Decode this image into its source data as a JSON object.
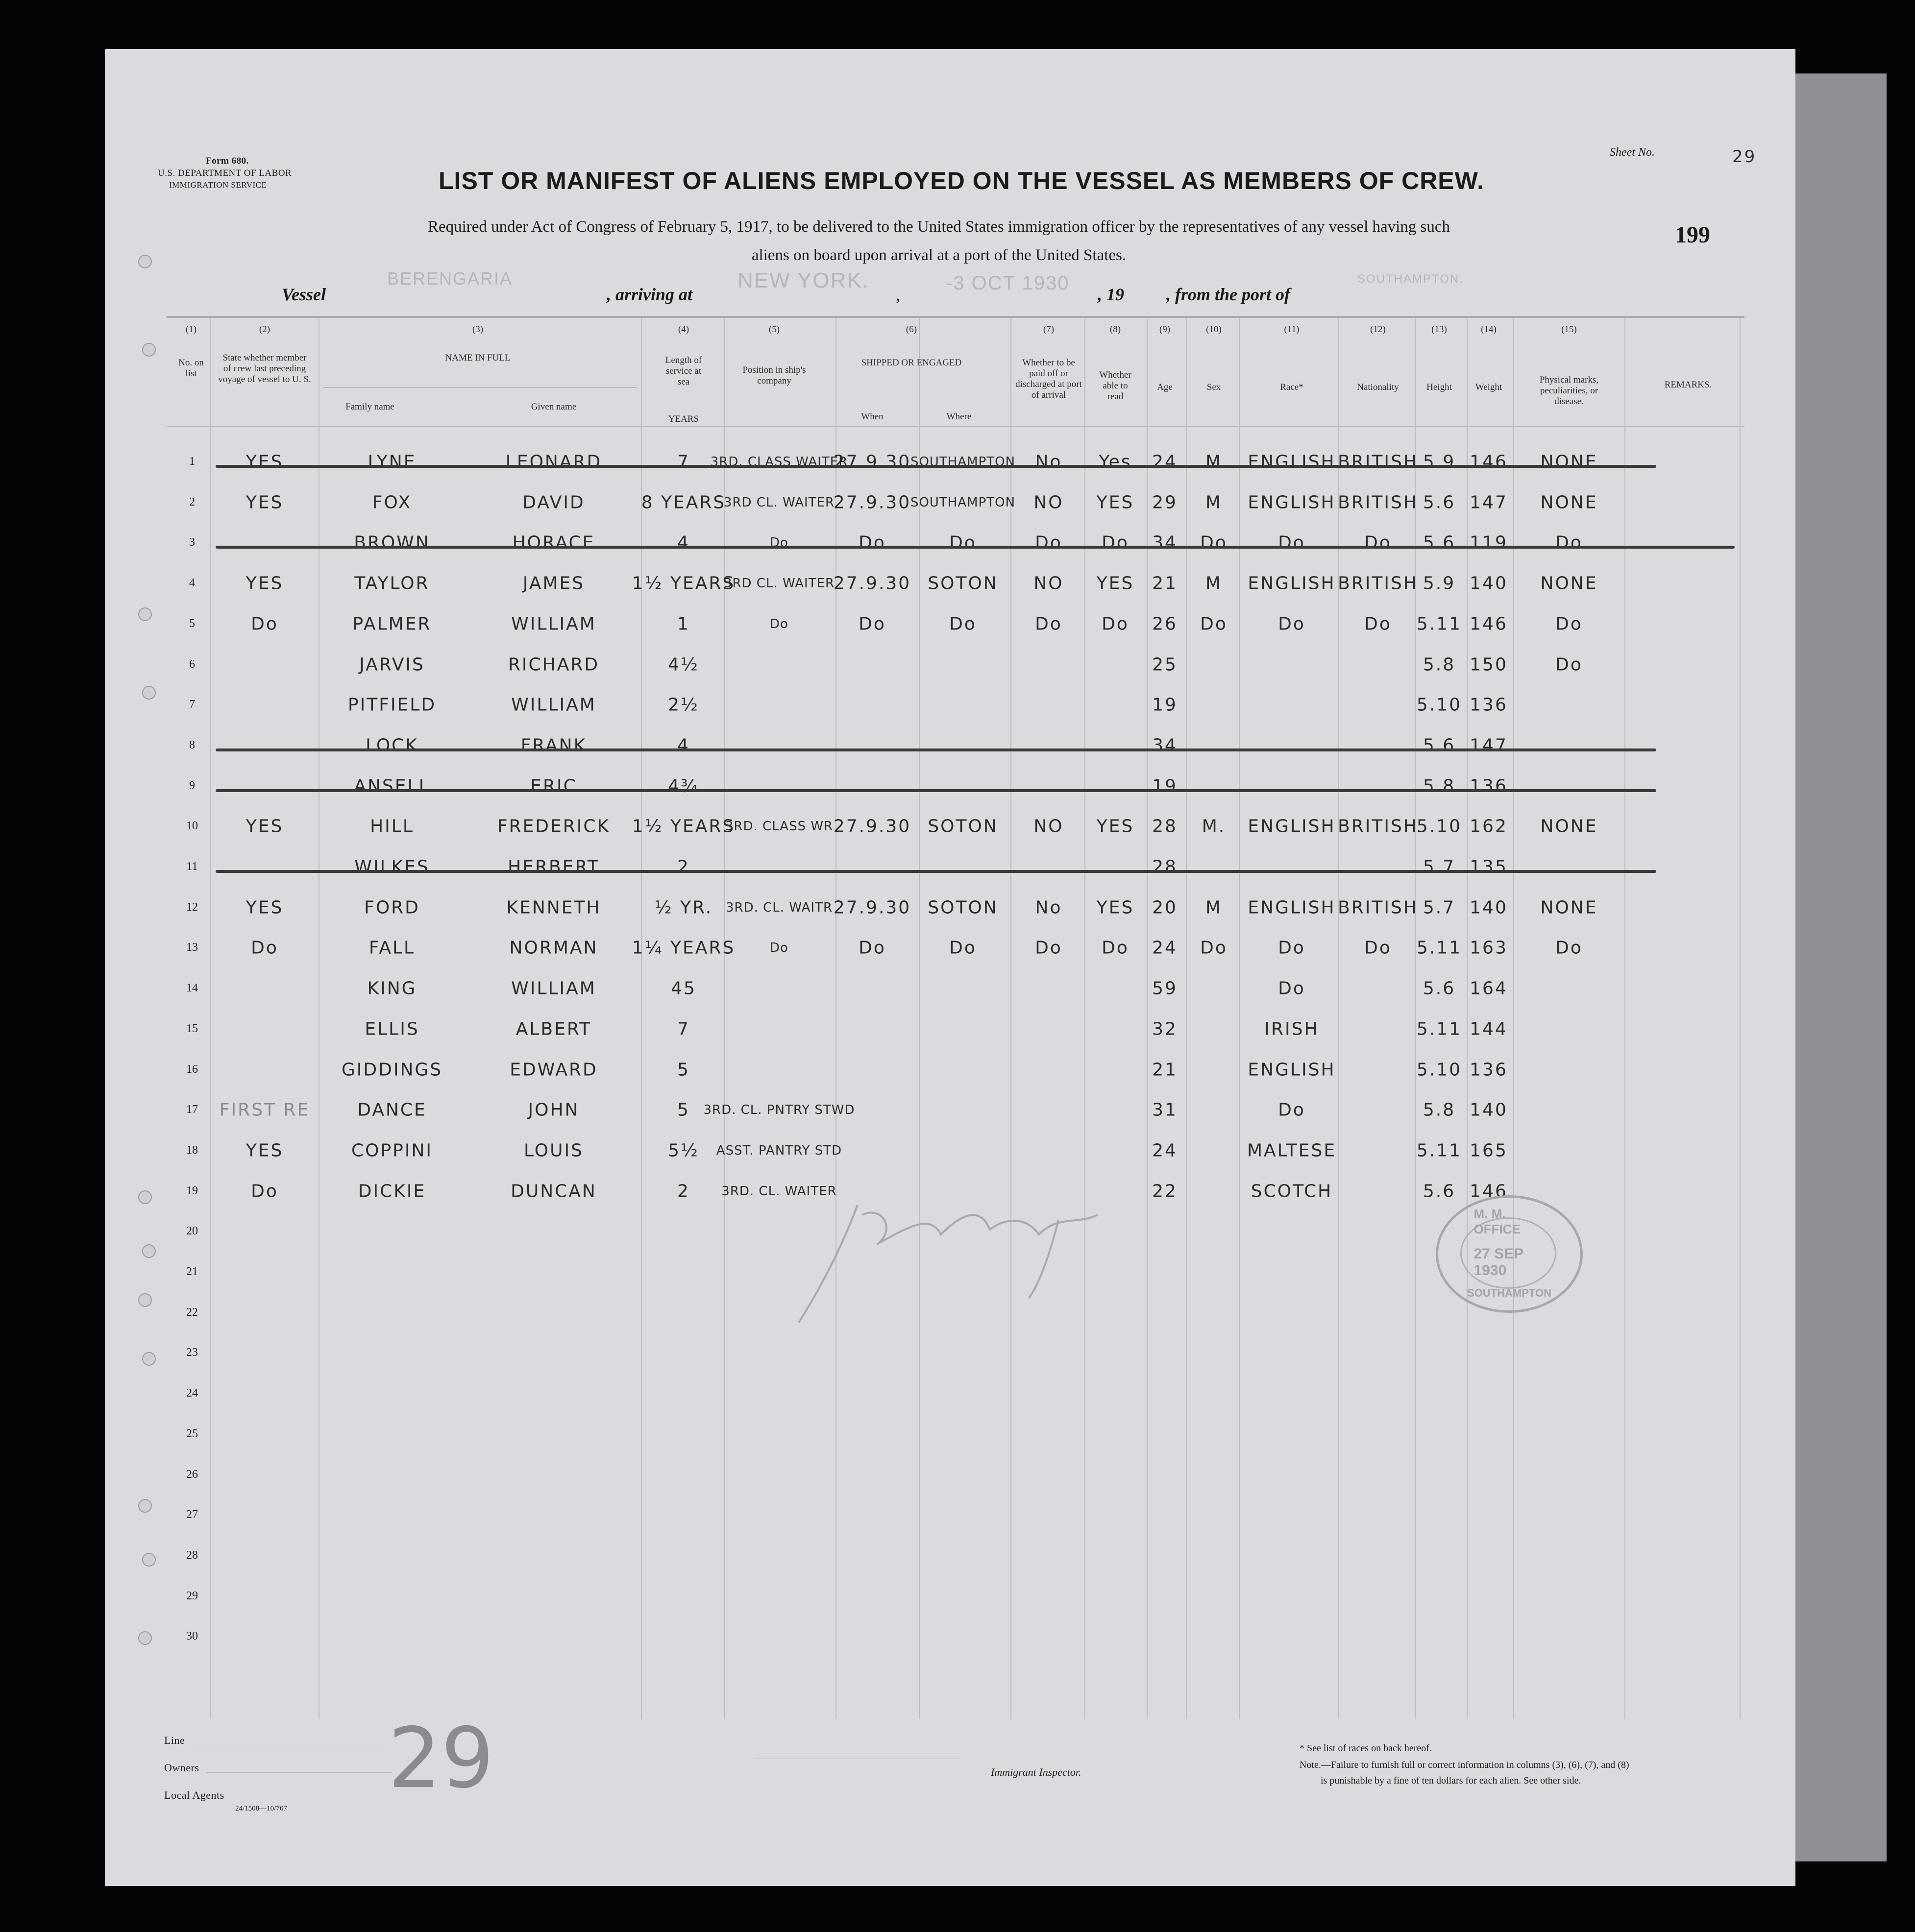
{
  "form": {
    "form_no": "Form 680.",
    "department": "U.S. DEPARTMENT OF LABOR",
    "service": "IMMIGRATION SERVICE"
  },
  "sheet": {
    "label": "Sheet No.",
    "value": "29"
  },
  "page_number": "199",
  "title": "LIST OR MANIFEST OF ALIENS EMPLOYED ON THE VESSEL AS MEMBERS OF CREW.",
  "subtitle_line1": "Required under Act of Congress of February 5, 1917, to be delivered to the United States immigration officer by the representatives of any vessel having such",
  "subtitle_line2": "aliens on board upon arrival at a port of the United States.",
  "vessel_line": {
    "vessel_label": "Vessel",
    "vessel_value": "BERENGARIA",
    "arriving_label": ", arriving at",
    "arriving_value": "NEW YORK.",
    "comma": ",",
    "date_value": "-3 OCT 1930",
    "year_label": ", 19",
    "port_label": ", from the port of",
    "port_value": "SOUTHAMPTON."
  },
  "columns": {
    "numbers": [
      "(1)",
      "(2)",
      "(3)",
      "(4)",
      "(5)",
      "(6)",
      "(7)",
      "(8)",
      "(9)",
      "(10)",
      "(11)",
      "(12)",
      "(13)",
      "(14)",
      "(15)"
    ],
    "no_on_list": "No. on list",
    "state_whether": "State whether member of crew last preceding voyage of vessel to U. S.",
    "name_in_full": "NAME IN FULL",
    "family_name": "Family name",
    "given_name": "Given name",
    "length_of_service": "Length of service at sea",
    "length_unit": "YEARS",
    "position": "Position in ship's company",
    "shipped_or_engaged": "SHIPPED OR ENGAGED",
    "when": "When",
    "where": "Where",
    "paid_off": "Whether to be paid off or discharged at port of arrival",
    "able_to_read": "Whether able to read",
    "age": "Age",
    "sex": "Sex",
    "race": "Race*",
    "nationality": "Nationality",
    "height": "Height",
    "weight": "Weight",
    "physical_marks": "Physical marks, peculiarities, or disease.",
    "remarks": "REMARKS."
  },
  "line_numbers": [
    "1",
    "2",
    "3",
    "4",
    "5",
    "6",
    "7",
    "8",
    "9",
    "10",
    "11",
    "12",
    "13",
    "14",
    "15",
    "16",
    "17",
    "18",
    "19",
    "20",
    "21",
    "22",
    "23",
    "24",
    "25",
    "26",
    "27",
    "28",
    "29",
    "30"
  ],
  "rows": [
    {
      "crew": "YES",
      "family": "LYNE",
      "given": "LEONARD",
      "length": "7",
      "position": "3RD. CLASS WAITER",
      "when": "27.9.30",
      "where": "SOUTHAMPTON",
      "paid_off": "No",
      "read": "Yes",
      "age": "24",
      "sex": "M",
      "race": "ENGLISH",
      "nationality": "BRITISH",
      "height": "5.9",
      "weight": "146",
      "marks": "NONE",
      "struck": true
    },
    {
      "crew": "YES",
      "family": "FOX",
      "given": "DAVID",
      "length": "8 YEARS",
      "position": "3RD CL. WAITER",
      "when": "27.9.30",
      "where": "SOUTHAMPTON",
      "paid_off": "NO",
      "read": "YES",
      "age": "29",
      "sex": "M",
      "race": "ENGLISH",
      "nationality": "BRITISH",
      "height": "5.6",
      "weight": "147",
      "marks": "NONE",
      "struck": false
    },
    {
      "crew": "",
      "family": "BROWN",
      "given": "HORACE",
      "length": "4",
      "position": "Do",
      "when": "Do",
      "where": "Do",
      "paid_off": "Do",
      "read": "Do",
      "age": "34",
      "sex": "Do",
      "race": "Do",
      "nationality": "Do",
      "height": "5.6",
      "weight": "119",
      "marks": "Do",
      "struck": true
    },
    {
      "crew": "YES",
      "family": "TAYLOR",
      "given": "JAMES",
      "length": "1½ YEARS",
      "position": "3RD CL. WAITER",
      "when": "27.9.30",
      "where": "SOTON",
      "paid_off": "NO",
      "read": "YES",
      "age": "21",
      "sex": "M",
      "race": "ENGLISH",
      "nationality": "BRITISH",
      "height": "5.9",
      "weight": "140",
      "marks": "NONE",
      "struck": false
    },
    {
      "crew": "Do",
      "family": "PALMER",
      "given": "WILLIAM",
      "length": "1",
      "position": "Do",
      "when": "Do",
      "where": "Do",
      "paid_off": "Do",
      "read": "Do",
      "age": "26",
      "sex": "Do",
      "race": "Do",
      "nationality": "Do",
      "height": "5.11",
      "weight": "146",
      "marks": "Do",
      "struck": false
    },
    {
      "crew": "",
      "family": "JARVIS",
      "given": "RICHARD",
      "length": "4½",
      "position": "",
      "when": "",
      "where": "",
      "paid_off": "",
      "read": "",
      "age": "25",
      "sex": "",
      "race": "",
      "nationality": "",
      "height": "5.8",
      "weight": "150",
      "marks": "Do",
      "struck": false
    },
    {
      "crew": "",
      "family": "PITFIELD",
      "given": "WILLIAM",
      "length": "2½",
      "position": "",
      "when": "",
      "where": "",
      "paid_off": "",
      "read": "",
      "age": "19",
      "sex": "",
      "race": "",
      "nationality": "",
      "height": "5.10",
      "weight": "136",
      "marks": "",
      "struck": false
    },
    {
      "crew": "",
      "family": "LOCK",
      "given": "FRANK",
      "length": "4",
      "position": "",
      "when": "",
      "where": "",
      "paid_off": "",
      "read": "",
      "age": "34",
      "sex": "",
      "race": "",
      "nationality": "",
      "height": "5.6",
      "weight": "147",
      "marks": "",
      "struck": true
    },
    {
      "crew": "",
      "family": "ANSELL",
      "given": "ERIC",
      "length": "4¾",
      "position": "",
      "when": "",
      "where": "",
      "paid_off": "",
      "read": "",
      "age": "19",
      "sex": "",
      "race": "",
      "nationality": "",
      "height": "5.8",
      "weight": "136",
      "marks": "",
      "struck": true
    },
    {
      "crew": "YES",
      "family": "HILL",
      "given": "FREDERICK",
      "length": "1½ YEARS",
      "position": "3RD. CLASS WR",
      "when": "27.9.30",
      "where": "SOTON",
      "paid_off": "NO",
      "read": "YES",
      "age": "28",
      "sex": "M.",
      "race": "ENGLISH",
      "nationality": "BRITISH",
      "height": "5.10",
      "weight": "162",
      "marks": "NONE",
      "struck": false
    },
    {
      "crew": "",
      "family": "WILKES",
      "given": "HERBERT",
      "length": "2",
      "position": "",
      "when": "",
      "where": "",
      "paid_off": "",
      "read": "",
      "age": "28",
      "sex": "",
      "race": "",
      "nationality": "",
      "height": "5.7",
      "weight": "135",
      "marks": "",
      "struck": true
    },
    {
      "crew": "YES",
      "family": "FORD",
      "given": "KENNETH",
      "length": "½ YR.",
      "position": "3RD. CL. WAITR",
      "when": "27.9.30",
      "where": "SOTON",
      "paid_off": "No",
      "read": "YES",
      "age": "20",
      "sex": "M",
      "race": "ENGLISH",
      "nationality": "BRITISH",
      "height": "5.7",
      "weight": "140",
      "marks": "NONE",
      "struck": false
    },
    {
      "crew": "Do",
      "family": "FALL",
      "given": "NORMAN",
      "length": "1¼ YEARS",
      "position": "Do",
      "when": "Do",
      "where": "Do",
      "paid_off": "Do",
      "read": "Do",
      "age": "24",
      "sex": "Do",
      "race": "Do",
      "nationality": "Do",
      "height": "5.11",
      "weight": "163",
      "marks": "Do",
      "struck": false
    },
    {
      "crew": "",
      "family": "KING",
      "given": "WILLIAM",
      "length": "45",
      "position": "",
      "when": "",
      "where": "",
      "paid_off": "",
      "read": "",
      "age": "59",
      "sex": "",
      "race": "Do",
      "nationality": "",
      "height": "5.6",
      "weight": "164",
      "marks": "",
      "struck": false
    },
    {
      "crew": "",
      "family": "ELLIS",
      "given": "ALBERT",
      "length": "7",
      "position": "",
      "when": "",
      "where": "",
      "paid_off": "",
      "read": "",
      "age": "32",
      "sex": "",
      "race": "IRISH",
      "nationality": "",
      "height": "5.11",
      "weight": "144",
      "marks": "",
      "struck": false
    },
    {
      "crew": "",
      "family": "GIDDINGS",
      "given": "EDWARD",
      "length": "5",
      "position": "",
      "when": "",
      "where": "",
      "paid_off": "",
      "read": "",
      "age": "21",
      "sex": "",
      "race": "ENGLISH",
      "nationality": "",
      "height": "5.10",
      "weight": "136",
      "marks": "",
      "struck": false
    },
    {
      "crew": "FIRST RE",
      "family": "DANCE",
      "given": "JOHN",
      "length": "5",
      "position": "3RD. CL. PNTRY STWD",
      "when": "",
      "where": "",
      "paid_off": "",
      "read": "",
      "age": "31",
      "sex": "",
      "race": "Do",
      "nationality": "",
      "height": "5.8",
      "weight": "140",
      "marks": "",
      "struck": false
    },
    {
      "crew": "YES",
      "family": "COPPINI",
      "given": "LOUIS",
      "length": "5½",
      "position": "ASST. PANTRY STD",
      "when": "",
      "where": "",
      "paid_off": "",
      "read": "",
      "age": "24",
      "sex": "",
      "race": "MALTESE",
      "nationality": "",
      "height": "5.11",
      "weight": "165",
      "marks": "",
      "struck": false
    },
    {
      "crew": "Do",
      "family": "DICKIE",
      "given": "DUNCAN",
      "length": "2",
      "position": "3RD. CL. WAITER",
      "when": "",
      "where": "",
      "paid_off": "",
      "read": "",
      "age": "22",
      "sex": "",
      "race": "SCOTCH",
      "nationality": "",
      "height": "5.6",
      "weight": "146",
      "marks": "",
      "struck": false
    }
  ],
  "stamp": {
    "top": "M. M. OFFICE",
    "date": "27 SEP 1930",
    "bottom": "SOUTHAMPTON"
  },
  "footer": {
    "line_label": "Line",
    "owners_label": "Owners",
    "agents_label": "Local Agents",
    "print_code": "24/1508—10/767",
    "inspector_label": "Immigrant Inspector.",
    "races_note": "* See list of races on back hereof.",
    "note_line1": "Note.—Failure to furnish full or correct information in columns (3), (6), (7), and (8)",
    "note_line2": "is punishable by a fine of ten dollars for each alien. See other side.",
    "handwritten_mark": "29"
  }
}
